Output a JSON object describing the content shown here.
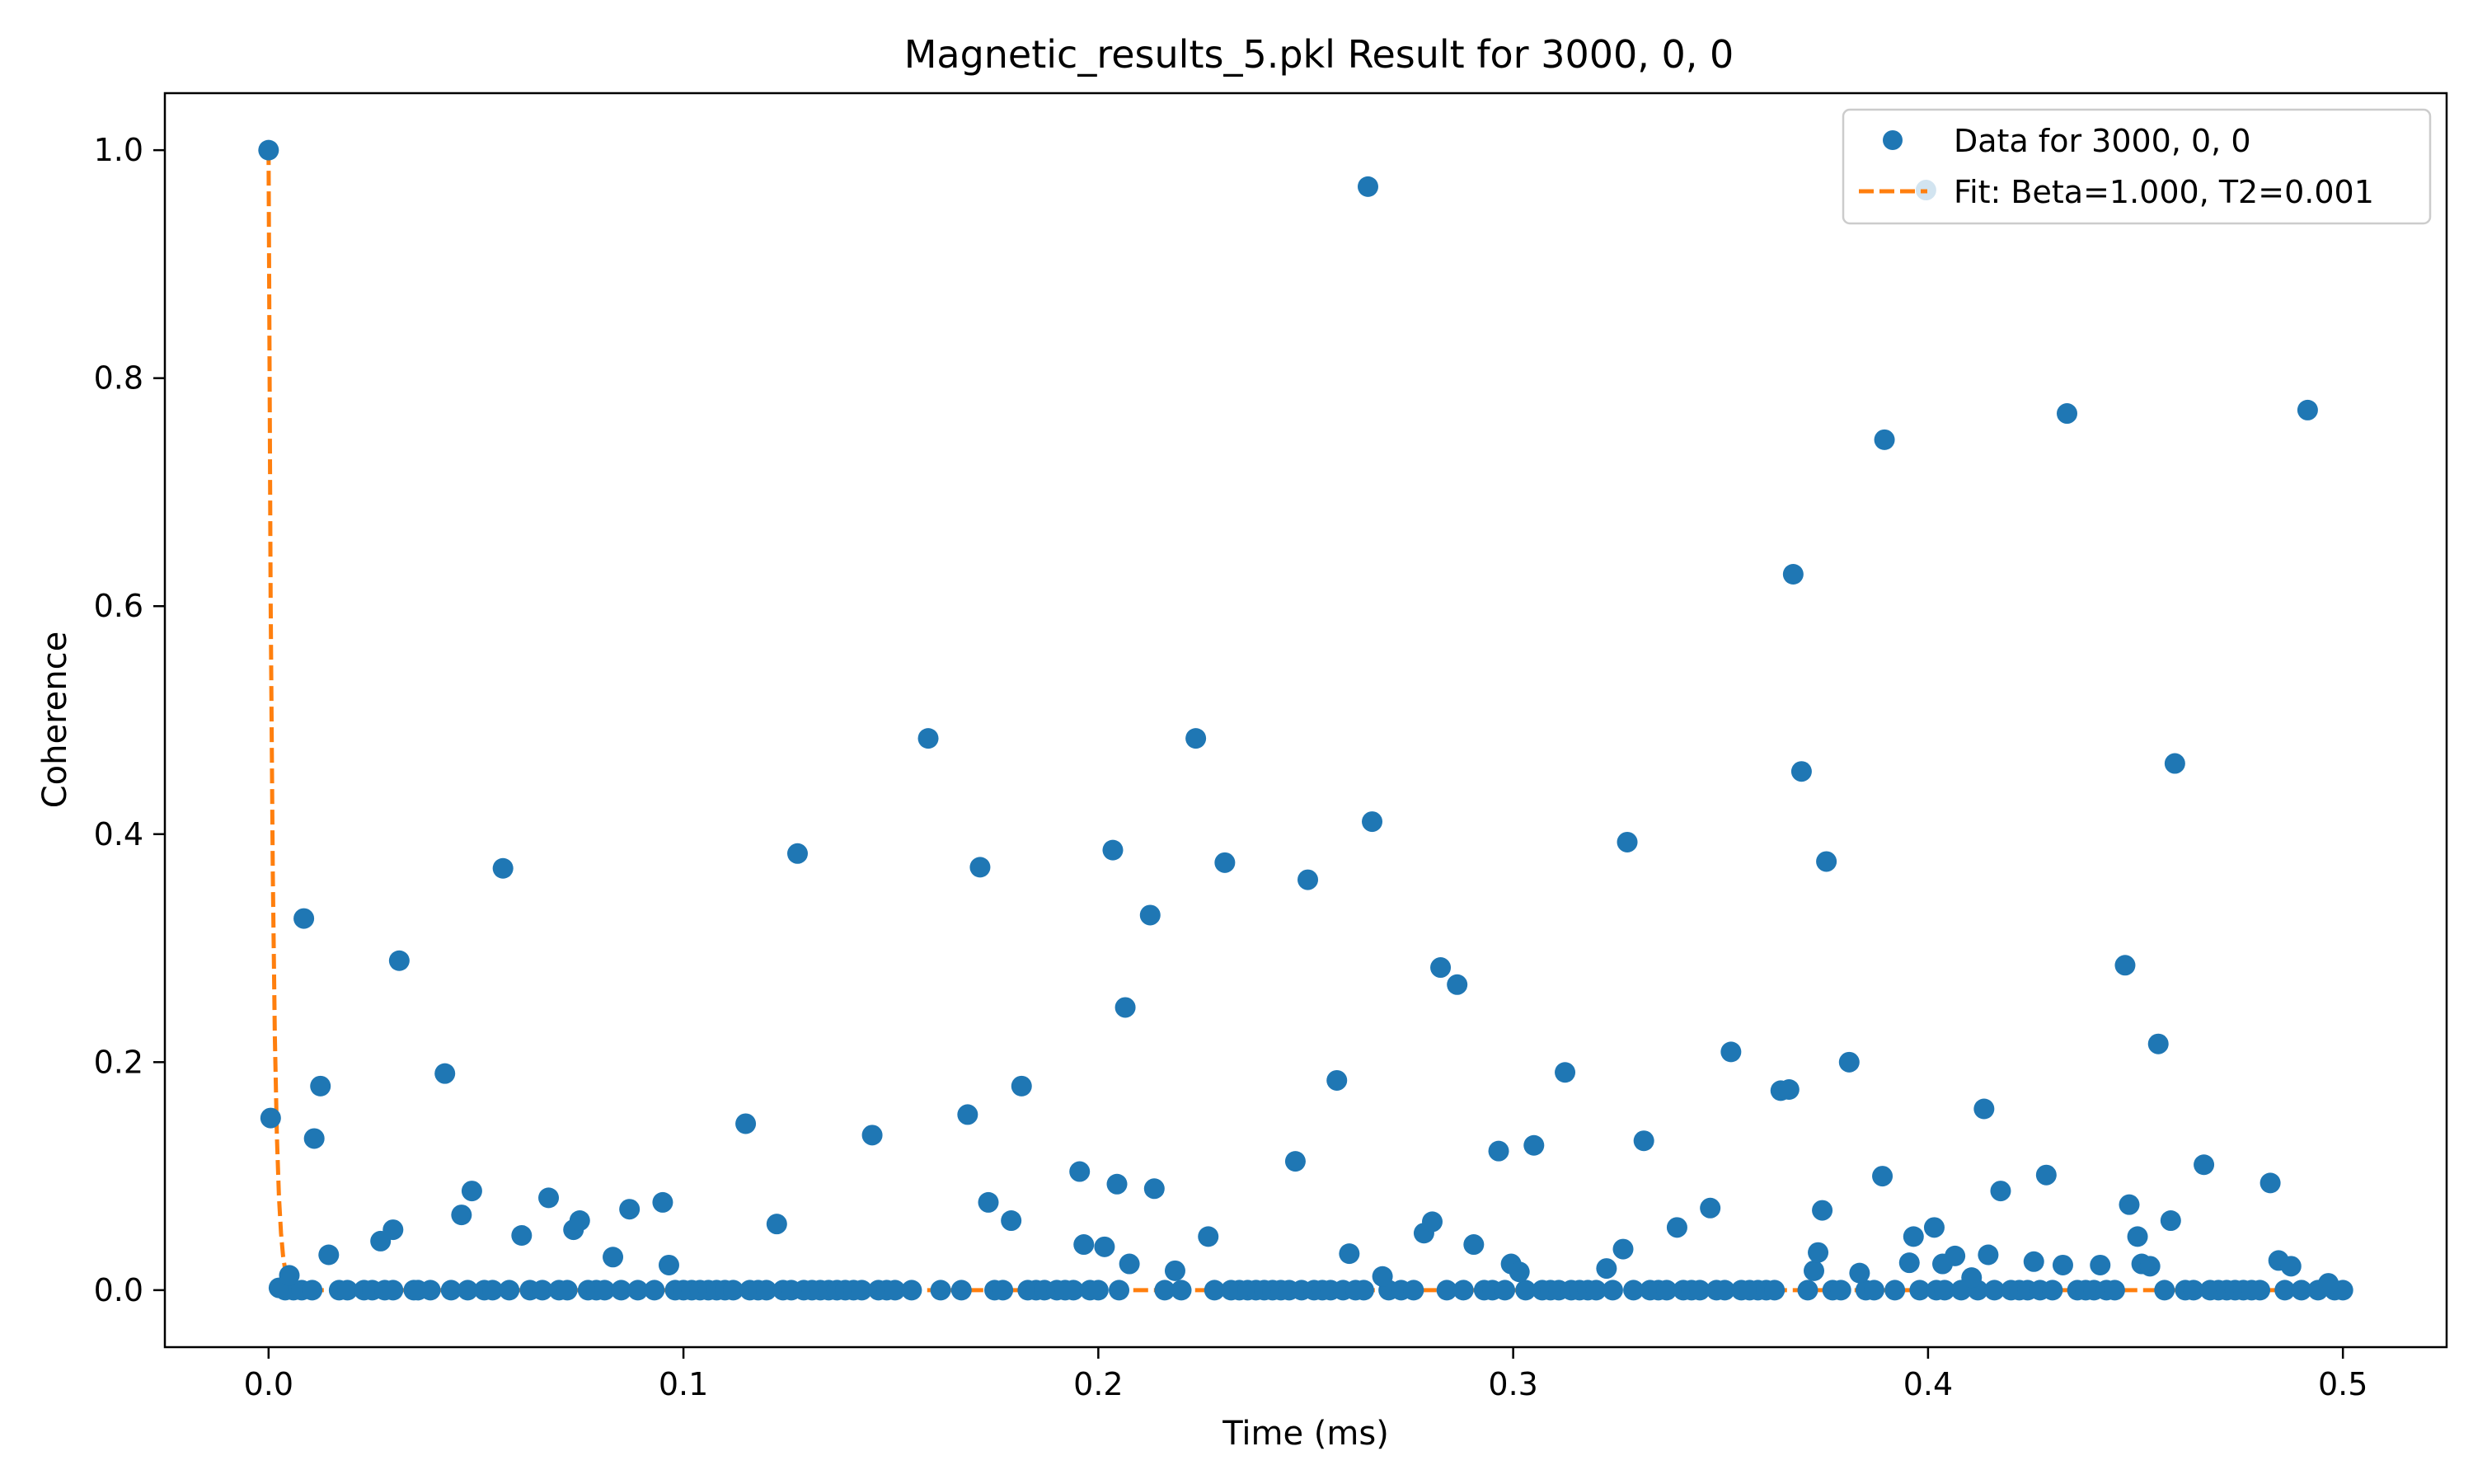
{
  "chart_data": {
    "type": "scatter",
    "title": "Magnetic_results_5.pkl Result for 3000, 0, 0",
    "xlabel": "Time (ms)",
    "ylabel": "Coherence",
    "xlim": [
      -0.025,
      0.525
    ],
    "ylim": [
      -0.05,
      1.05
    ],
    "xticks": [
      0.0,
      0.1,
      0.2,
      0.3,
      0.4,
      0.5
    ],
    "xtick_labels": [
      "0.0",
      "0.1",
      "0.2",
      "0.3",
      "0.4",
      "0.5"
    ],
    "yticks": [
      0.0,
      0.2,
      0.4,
      0.6,
      0.8,
      1.0
    ],
    "ytick_labels": [
      "0.0",
      "0.2",
      "0.4",
      "0.6",
      "0.8",
      "1.0"
    ],
    "grid": false,
    "legend_position": "top-right",
    "series": [
      {
        "name": "Data for 3000, 0, 0",
        "kind": "scatter",
        "color": "#1f77b4",
        "x": [
          0.0,
          0.0005,
          0.0025,
          0.005,
          0.0085,
          0.011,
          0.0125,
          0.0145,
          0.027,
          0.03,
          0.0315,
          0.0425,
          0.0465,
          0.049,
          0.0565,
          0.061,
          0.0675,
          0.0735,
          0.075,
          0.083,
          0.087,
          0.095,
          0.0965,
          0.115,
          0.1225,
          0.1275,
          0.1455,
          0.159,
          0.1685,
          0.1715,
          0.1735,
          0.179,
          0.1815,
          0.1955,
          0.1965,
          0.2015,
          0.2035,
          0.2045,
          0.2065,
          0.2075,
          0.2125,
          0.2135,
          0.2185,
          0.2235,
          0.2265,
          0.2305,
          0.2475,
          0.2505,
          0.2575,
          0.2605,
          0.265,
          0.266,
          0.2685,
          0.2785,
          0.2805,
          0.2825,
          0.2865,
          0.2905,
          0.2965,
          0.2995,
          0.3015,
          0.305,
          0.3125,
          0.3225,
          0.3265,
          0.3275,
          0.3315,
          0.3395,
          0.3475,
          0.3525,
          0.3645,
          0.3665,
          0.3675,
          0.3695,
          0.3725,
          0.3735,
          0.3745,
          0.3755,
          0.381,
          0.3835,
          0.389,
          0.3895,
          0.3955,
          0.3965,
          0.3995,
          0.4015,
          0.4035,
          0.4065,
          0.4105,
          0.4135,
          0.4145,
          0.4175,
          0.4255,
          0.4285,
          0.4325,
          0.4335,
          0.4415,
          0.4475,
          0.4485,
          0.4505,
          0.4515,
          0.4535,
          0.4555,
          0.4585,
          0.4595,
          0.4665,
          0.4825,
          0.4845,
          0.4875,
          0.4915,
          0.4965
        ],
        "y": [
          1.0,
          0.151,
          0.002,
          0.013,
          0.326,
          0.133,
          0.179,
          0.031,
          0.043,
          0.053,
          0.289,
          0.19,
          0.066,
          0.087,
          0.37,
          0.048,
          0.081,
          0.053,
          0.061,
          0.029,
          0.071,
          0.077,
          0.022,
          0.146,
          0.058,
          0.383,
          0.136,
          0.484,
          0.154,
          0.371,
          0.077,
          0.061,
          0.179,
          0.104,
          0.04,
          0.038,
          0.386,
          0.093,
          0.248,
          0.023,
          0.329,
          0.089,
          0.017,
          0.484,
          0.047,
          0.375,
          0.113,
          0.36,
          0.184,
          0.032,
          0.968,
          0.411,
          0.012,
          0.05,
          0.06,
          0.283,
          0.268,
          0.04,
          0.122,
          0.023,
          0.016,
          0.127,
          0.191,
          0.019,
          0.036,
          0.393,
          0.131,
          0.055,
          0.072,
          0.209,
          0.175,
          0.176,
          0.628,
          0.455,
          0.017,
          0.033,
          0.07,
          0.376,
          0.2,
          0.015,
          0.1,
          0.746,
          0.024,
          0.047,
          0.965,
          0.055,
          0.023,
          0.03,
          0.011,
          0.159,
          0.031,
          0.087,
          0.025,
          0.101,
          0.022,
          0.769,
          0.022,
          0.285,
          0.075,
          0.047,
          0.023,
          0.021,
          0.216,
          0.061,
          0.462,
          0.11,
          0.094,
          0.026,
          0.021,
          0.772,
          0.006
        ],
        "baseline_x": [
          0.004,
          0.006,
          0.008,
          0.0105,
          0.017,
          0.019,
          0.023,
          0.025,
          0.028,
          0.03,
          0.035,
          0.036,
          0.039,
          0.044,
          0.048,
          0.052,
          0.054,
          0.058,
          0.063,
          0.066,
          0.07,
          0.072,
          0.077,
          0.079,
          0.081,
          0.085,
          0.089,
          0.093,
          0.098,
          0.1,
          0.102,
          0.104,
          0.106,
          0.108,
          0.11,
          0.112,
          0.116,
          0.118,
          0.12,
          0.124,
          0.126,
          0.129,
          0.131,
          0.133,
          0.135,
          0.137,
          0.139,
          0.141,
          0.143,
          0.147,
          0.149,
          0.151,
          0.155,
          0.162,
          0.167,
          0.175,
          0.177,
          0.183,
          0.185,
          0.187,
          0.19,
          0.192,
          0.194,
          0.198,
          0.2,
          0.205,
          0.216,
          0.22,
          0.228,
          0.232,
          0.234,
          0.236,
          0.238,
          0.24,
          0.242,
          0.244,
          0.246,
          0.249,
          0.252,
          0.254,
          0.256,
          0.259,
          0.262,
          0.264,
          0.27,
          0.273,
          0.276,
          0.284,
          0.288,
          0.293,
          0.295,
          0.298,
          0.303,
          0.307,
          0.309,
          0.311,
          0.314,
          0.316,
          0.318,
          0.32,
          0.324,
          0.329,
          0.333,
          0.335,
          0.337,
          0.341,
          0.343,
          0.345,
          0.349,
          0.351,
          0.355,
          0.357,
          0.359,
          0.361,
          0.363,
          0.371,
          0.377,
          0.379,
          0.385,
          0.387,
          0.392,
          0.398,
          0.402,
          0.404,
          0.408,
          0.412,
          0.416,
          0.42,
          0.422,
          0.424,
          0.427,
          0.43,
          0.436,
          0.438,
          0.44,
          0.443,
          0.445,
          0.457,
          0.462,
          0.464,
          0.468,
          0.47,
          0.472,
          0.474,
          0.476,
          0.478,
          0.48,
          0.486,
          0.49,
          0.494,
          0.498,
          0.5
        ]
      },
      {
        "name": "Fit: Beta=1.000, T2=0.001",
        "kind": "line",
        "color": "#ff7f0e",
        "style": "dashed",
        "x": [
          0.0,
          0.0005,
          0.001,
          0.0015,
          0.002,
          0.0025,
          0.003,
          0.0035,
          0.004,
          0.005,
          0.01,
          0.5
        ],
        "y": [
          1.0,
          0.607,
          0.368,
          0.223,
          0.135,
          0.082,
          0.05,
          0.03,
          0.018,
          0.007,
          0.0,
          0.0
        ]
      }
    ]
  }
}
